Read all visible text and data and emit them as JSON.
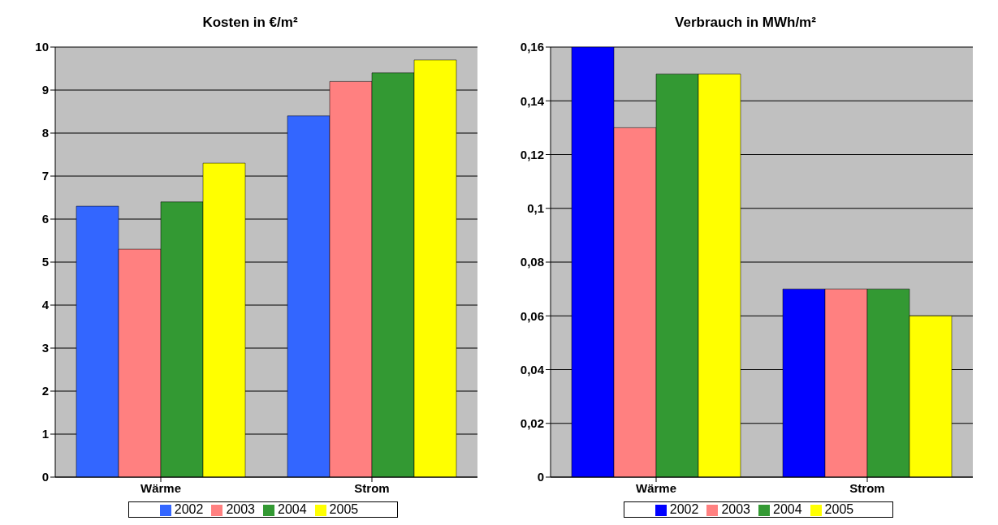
{
  "chart_data": [
    {
      "type": "bar",
      "title": "Kosten in €/m²",
      "categories": [
        "Wärme",
        "Strom"
      ],
      "series": [
        {
          "name": "2002",
          "color": "#3366ff",
          "values": [
            6.3,
            8.4
          ]
        },
        {
          "name": "2003",
          "color": "#ff8080",
          "values": [
            5.3,
            9.2
          ]
        },
        {
          "name": "2004",
          "color": "#339933",
          "values": [
            6.4,
            9.4
          ]
        },
        {
          "name": "2005",
          "color": "#ffff00",
          "values": [
            7.3,
            9.7
          ]
        }
      ],
      "ylim": [
        0,
        10
      ],
      "yticks": [
        0,
        1,
        2,
        3,
        4,
        5,
        6,
        7,
        8,
        9,
        10
      ],
      "grid": "y",
      "legend": "bottom"
    },
    {
      "type": "bar",
      "title": "Verbrauch in MWh/m²",
      "categories": [
        "Wärme",
        "Strom"
      ],
      "series": [
        {
          "name": "2002",
          "color": "#0000ff",
          "values": [
            0.16,
            0.07
          ]
        },
        {
          "name": "2003",
          "color": "#ff8080",
          "values": [
            0.13,
            0.07
          ]
        },
        {
          "name": "2004",
          "color": "#339933",
          "values": [
            0.15,
            0.07
          ]
        },
        {
          "name": "2005",
          "color": "#ffff00",
          "values": [
            0.15,
            0.06
          ]
        }
      ],
      "ylim": [
        0,
        0.16
      ],
      "yticks": [
        {
          "value": 0,
          "label": "0"
        },
        {
          "value": 0.02,
          "label": "0,02"
        },
        {
          "value": 0.04,
          "label": "0,04"
        },
        {
          "value": 0.06,
          "label": "0,06"
        },
        {
          "value": 0.08,
          "label": "0,08"
        },
        {
          "value": 0.1,
          "label": "0,1"
        },
        {
          "value": 0.12,
          "label": "0,12"
        },
        {
          "value": 0.14,
          "label": "0,14"
        },
        {
          "value": 0.16,
          "label": "0,16"
        }
      ],
      "grid": "y",
      "legend": "bottom"
    }
  ]
}
